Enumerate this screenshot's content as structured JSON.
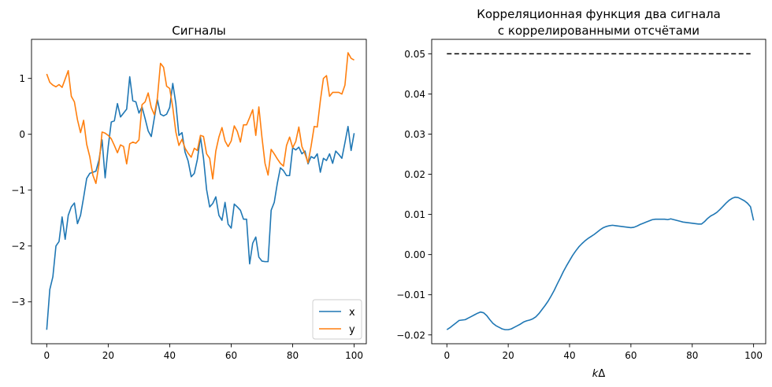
{
  "chart_data": [
    {
      "type": "line",
      "title": "Сигналы",
      "xlabel": "",
      "ylabel": "",
      "xlim": [
        -4.95,
        103.95
      ],
      "ylim": [
        -3.75,
        1.7
      ],
      "x_ticks": [
        0,
        20,
        40,
        60,
        80,
        100
      ],
      "y_ticks": [
        -3,
        -2,
        -1,
        0,
        1
      ],
      "legend_position": "lower-right",
      "grid": false,
      "series": [
        {
          "name": "x",
          "color": "#1f77b4",
          "values": [
            -3.5,
            -2.78,
            -2.55,
            -2.0,
            -1.92,
            -1.48,
            -1.88,
            -1.45,
            -1.3,
            -1.23,
            -1.6,
            -1.45,
            -1.13,
            -0.79,
            -0.7,
            -0.68,
            -0.66,
            -0.46,
            -0.1,
            -0.78,
            -0.22,
            0.22,
            0.24,
            0.55,
            0.31,
            0.38,
            0.45,
            1.03,
            0.6,
            0.58,
            0.38,
            0.49,
            0.28,
            0.06,
            -0.04,
            0.29,
            0.62,
            0.36,
            0.33,
            0.36,
            0.48,
            0.91,
            0.55,
            -0.02,
            0.03,
            -0.32,
            -0.48,
            -0.76,
            -0.7,
            -0.45,
            -0.05,
            -0.43,
            -0.99,
            -1.3,
            -1.24,
            -1.12,
            -1.45,
            -1.54,
            -1.22,
            -1.61,
            -1.68,
            -1.25,
            -1.3,
            -1.36,
            -1.52,
            -1.52,
            -2.32,
            -1.95,
            -1.84,
            -2.2,
            -2.27,
            -2.28,
            -2.28,
            -1.36,
            -1.22,
            -0.88,
            -0.6,
            -0.65,
            -0.74,
            -0.74,
            -0.24,
            -0.28,
            -0.23,
            -0.35,
            -0.3,
            -0.53,
            -0.4,
            -0.43,
            -0.35,
            -0.68,
            -0.43,
            -0.47,
            -0.35,
            -0.52,
            -0.3,
            -0.36,
            -0.43,
            -0.15,
            0.14,
            -0.29,
            0.02
          ]
        },
        {
          "name": "y",
          "color": "#ff7f0e",
          "values": [
            1.08,
            0.93,
            0.88,
            0.85,
            0.89,
            0.84,
            0.99,
            1.14,
            0.68,
            0.58,
            0.26,
            0.03,
            0.25,
            -0.18,
            -0.4,
            -0.73,
            -0.88,
            -0.54,
            0.04,
            0.02,
            -0.02,
            -0.08,
            -0.2,
            -0.33,
            -0.19,
            -0.22,
            -0.53,
            -0.17,
            -0.14,
            -0.16,
            -0.1,
            0.53,
            0.58,
            0.74,
            0.48,
            0.35,
            0.65,
            1.27,
            1.2,
            0.86,
            0.82,
            0.48,
            0.04,
            -0.2,
            -0.09,
            -0.25,
            -0.34,
            -0.41,
            -0.25,
            -0.29,
            -0.02,
            -0.04,
            -0.35,
            -0.43,
            -0.8,
            -0.3,
            -0.05,
            0.12,
            -0.12,
            -0.22,
            -0.12,
            0.15,
            0.05,
            -0.14,
            0.17,
            0.17,
            0.3,
            0.44,
            -0.02,
            0.49,
            -0.05,
            -0.52,
            -0.73,
            -0.27,
            -0.35,
            -0.44,
            -0.52,
            -0.57,
            -0.2,
            -0.05,
            -0.24,
            -0.13,
            0.13,
            -0.22,
            -0.35,
            -0.51,
            -0.21,
            0.14,
            0.13,
            0.6,
            1.0,
            1.05,
            0.68,
            0.75,
            0.75,
            0.75,
            0.72,
            0.88,
            1.46,
            1.36,
            1.33
          ]
        }
      ]
    },
    {
      "type": "line",
      "title": "Корреляционная функция два сигнала\nс коррелированными отсчётами",
      "title_lines": [
        "Корреляционная функция два сигнала",
        "с коррелированными отсчётами"
      ],
      "xlabel": "kΔ",
      "xlabel_main": "k",
      "xlabel_symbol": "Δ",
      "ylabel": "",
      "xlim": [
        -4.95,
        103.95
      ],
      "ylim": [
        -0.0222,
        0.0536
      ],
      "x_ticks": [
        0,
        20,
        40,
        60,
        80,
        100
      ],
      "y_ticks": [
        -0.02,
        -0.01,
        0.0,
        0.01,
        0.02,
        0.03,
        0.04,
        0.05
      ],
      "y_tick_labels": [
        "−0.02",
        "−0.01",
        "0.00",
        "0.01",
        "0.02",
        "0.03",
        "0.04",
        "0.05"
      ],
      "grid": false,
      "reference_line": {
        "value": 0.05,
        "x_range": [
          0,
          99
        ],
        "color": "#000000",
        "style": "dashed"
      },
      "series": [
        {
          "color": "#1f77b4",
          "values": [
            -0.0187,
            -0.0182,
            -0.0176,
            -0.017,
            -0.0164,
            -0.0163,
            -0.0162,
            -0.0158,
            -0.0154,
            -0.015,
            -0.0146,
            -0.0143,
            -0.0145,
            -0.0152,
            -0.0162,
            -0.0171,
            -0.0177,
            -0.0181,
            -0.0185,
            -0.0187,
            -0.0187,
            -0.0185,
            -0.0181,
            -0.0177,
            -0.0173,
            -0.0168,
            -0.0165,
            -0.0163,
            -0.016,
            -0.0155,
            -0.0147,
            -0.0137,
            -0.0127,
            -0.0116,
            -0.0103,
            -0.0089,
            -0.0073,
            -0.0058,
            -0.0042,
            -0.0028,
            -0.0015,
            -0.0002,
            0.0009,
            0.0019,
            0.0027,
            0.0034,
            0.004,
            0.0045,
            0.005,
            0.0056,
            0.0062,
            0.0067,
            0.007,
            0.0072,
            0.0073,
            0.0072,
            0.0071,
            0.007,
            0.0069,
            0.0068,
            0.0067,
            0.0068,
            0.0071,
            0.0075,
            0.0078,
            0.0081,
            0.0084,
            0.0087,
            0.0088,
            0.0088,
            0.0088,
            0.0088,
            0.0087,
            0.0089,
            0.0087,
            0.0085,
            0.0083,
            0.0081,
            0.008,
            0.0079,
            0.0078,
            0.0077,
            0.0076,
            0.0076,
            0.0082,
            0.009,
            0.0096,
            0.01,
            0.0105,
            0.0112,
            0.012,
            0.0128,
            0.0135,
            0.014,
            0.0143,
            0.0142,
            0.0138,
            0.0134,
            0.0128,
            0.0119,
            0.0085
          ]
        }
      ]
    }
  ]
}
